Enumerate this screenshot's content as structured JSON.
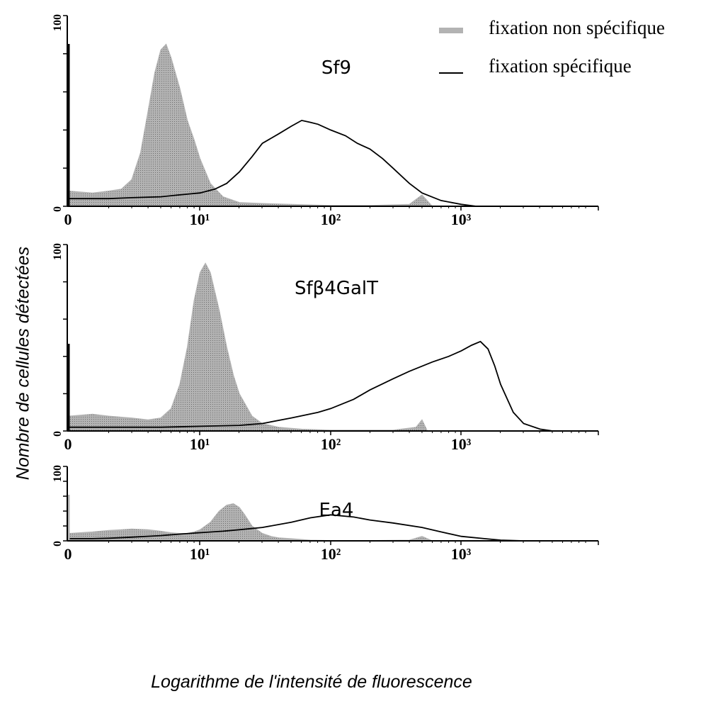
{
  "legend": {
    "nonspecific_label": "fixation non spécifique",
    "specific_label": "fixation spécifique"
  },
  "y_title": "Nombre de cellules détectées",
  "x_title": "Logarithme de l'intensité de fluorescence",
  "colors": {
    "nonspecific": "#b3b3b3",
    "specific": "#000000"
  },
  "chart_data": [
    {
      "type": "area",
      "title": "Sf9",
      "xlabel": "Logarithme de l'intensité de fluorescence",
      "ylabel": "Nombre de cellules détectées",
      "x_scale": "log",
      "x_ticks": [
        "0",
        "10¹",
        "10²",
        "10³"
      ],
      "y_ticks": [
        "0",
        "100"
      ],
      "ylim": [
        0,
        100
      ],
      "series": [
        {
          "name": "fixation non spécifique",
          "style": "filled",
          "x": [
            1,
            1.5,
            2,
            2.5,
            3,
            3.5,
            4,
            4.5,
            5,
            5.5,
            6,
            7,
            8,
            9,
            10,
            12,
            15,
            20,
            30,
            50,
            100,
            200,
            400,
            500,
            600,
            1000
          ],
          "y": [
            8,
            7,
            8,
            9,
            14,
            28,
            50,
            70,
            82,
            85,
            78,
            62,
            45,
            35,
            25,
            12,
            5,
            2,
            1.5,
            1,
            0.5,
            0.5,
            1,
            6,
            0,
            0
          ]
        },
        {
          "name": "fixation spécifique",
          "style": "line",
          "x": [
            1,
            1.5,
            2,
            3,
            5,
            7,
            10,
            13,
            16,
            20,
            25,
            30,
            40,
            50,
            60,
            70,
            80,
            100,
            130,
            160,
            200,
            250,
            300,
            400,
            500,
            700,
            1000,
            1300
          ],
          "y": [
            4,
            4,
            4,
            4.5,
            5,
            6,
            7,
            9,
            12,
            18,
            26,
            33,
            38,
            42,
            45,
            44,
            43,
            40,
            37,
            33,
            30,
            25,
            20,
            12,
            7,
            3,
            1,
            0
          ]
        }
      ]
    },
    {
      "type": "area",
      "title": "Sfβ4GalT",
      "xlabel": "Logarithme de l'intensité de fluorescence",
      "ylabel": "Nombre de cellules détectées",
      "x_scale": "log",
      "x_ticks": [
        "0",
        "10¹",
        "10²",
        "10³"
      ],
      "y_ticks": [
        "0",
        "100"
      ],
      "ylim": [
        0,
        100
      ],
      "series": [
        {
          "name": "fixation non spécifique",
          "style": "filled",
          "x": [
            1,
            1.5,
            2,
            3,
            4,
            5,
            6,
            7,
            8,
            9,
            10,
            11,
            12,
            14,
            16,
            18,
            20,
            25,
            30,
            40,
            60,
            100,
            300,
            450,
            500,
            550,
            700
          ],
          "y": [
            8,
            9,
            8,
            7,
            6,
            7,
            12,
            25,
            45,
            70,
            85,
            90,
            85,
            65,
            45,
            30,
            20,
            8,
            4,
            2,
            1,
            0.5,
            0.5,
            2,
            6,
            0,
            0
          ]
        },
        {
          "name": "fixation spécifique",
          "style": "line",
          "x": [
            1,
            2,
            5,
            10,
            20,
            30,
            50,
            80,
            100,
            150,
            200,
            300,
            400,
            600,
            800,
            1000,
            1200,
            1400,
            1600,
            1800,
            2000,
            2500,
            3000,
            4000,
            5000
          ],
          "y": [
            2,
            2,
            2,
            2.5,
            3,
            4,
            7,
            10,
            12,
            17,
            22,
            28,
            32,
            37,
            40,
            43,
            46,
            48,
            44,
            35,
            25,
            10,
            4,
            1,
            0
          ]
        }
      ]
    },
    {
      "type": "area",
      "title": "Ea4",
      "xlabel": "Logarithme de l'intensité de fluorescence",
      "ylabel": "Nombre de cellules détectées",
      "x_scale": "log",
      "x_ticks": [
        "0",
        "10¹",
        "10²",
        "10³"
      ],
      "y_ticks": [
        "0",
        "100"
      ],
      "ylim": [
        0,
        100
      ],
      "series": [
        {
          "name": "fixation non spécifique",
          "style": "filled",
          "x": [
            1,
            1.5,
            2,
            2.5,
            3,
            4,
            5,
            6,
            7,
            8,
            9,
            10,
            12,
            14,
            16,
            18,
            20,
            22,
            25,
            30,
            35,
            40,
            50,
            70,
            100,
            200,
            400,
            500,
            600,
            800
          ],
          "y": [
            10,
            12,
            14,
            15,
            16,
            15,
            13,
            11,
            10,
            10,
            12,
            15,
            25,
            40,
            48,
            50,
            45,
            35,
            20,
            10,
            6,
            4,
            3,
            1,
            0.5,
            0.5,
            1,
            6,
            0,
            0
          ]
        },
        {
          "name": "fixation spécifique",
          "style": "line",
          "x": [
            1,
            1.5,
            2,
            3,
            5,
            7,
            10,
            15,
            20,
            30,
            50,
            70,
            100,
            150,
            200,
            300,
            500,
            700,
            1000,
            1500,
            2000,
            3000
          ],
          "y": [
            3,
            3,
            3.5,
            5,
            7,
            9,
            11,
            13,
            15,
            18,
            25,
            31,
            35,
            32,
            28,
            24,
            18,
            12,
            6,
            3,
            1,
            0
          ]
        }
      ]
    }
  ]
}
